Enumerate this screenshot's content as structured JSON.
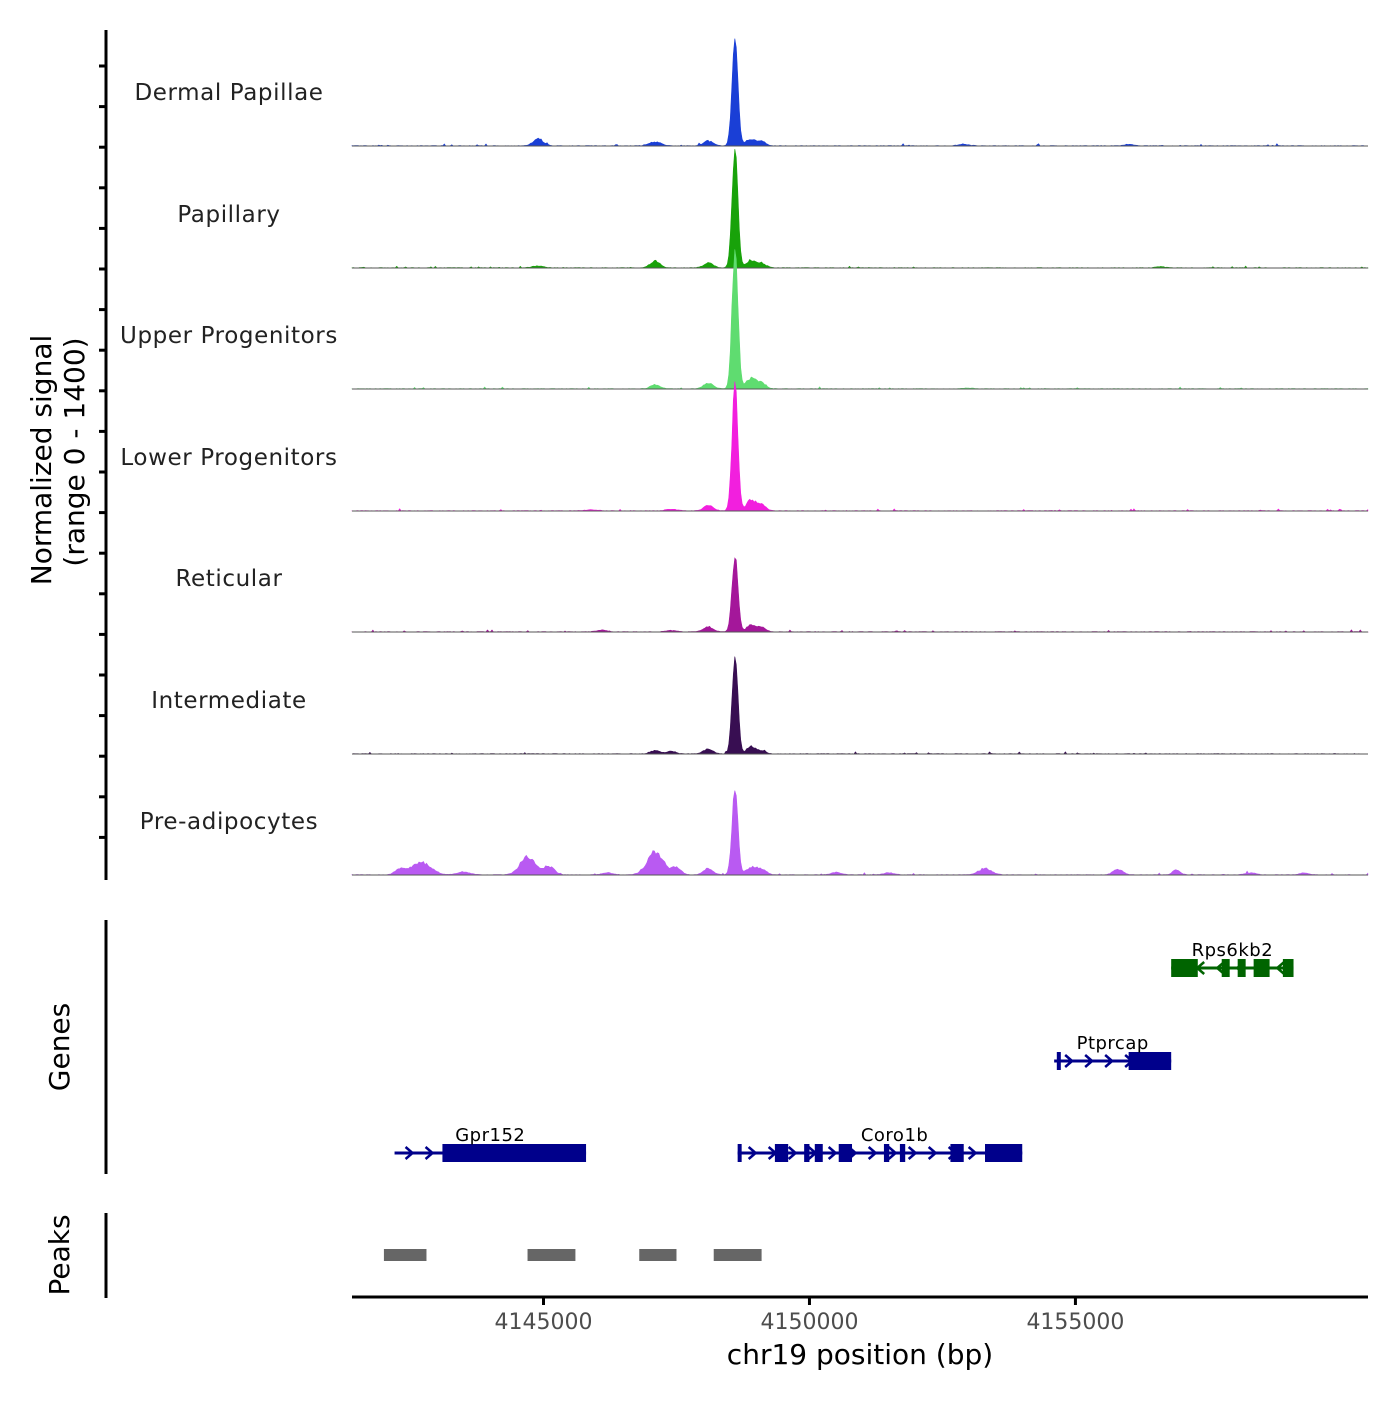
{
  "chart_data": {
    "type": "area",
    "title": "",
    "chromosome": "chr19",
    "xlabel": "chr19 position (bp)",
    "ylabel_line1": "Normalized signal",
    "ylabel_line2": "(range 0 - 1400)",
    "y_range": [
      0,
      1400
    ],
    "xlim": [
      4141400,
      4160500
    ],
    "x_ticks": [
      4145000,
      4150000,
      4155000
    ],
    "x_tick_labels": [
      "4145000",
      "4150000",
      "4155000"
    ],
    "series": [
      {
        "name": "Dermal Papillae",
        "color": "#1a3fd6",
        "peak": 1400,
        "minor": [
          [
            4144900,
            110,
            90
          ],
          [
            4147100,
            60,
            110
          ],
          [
            4148100,
            70,
            90
          ],
          [
            4148900,
            90,
            90
          ],
          [
            4149100,
            60,
            80
          ],
          [
            4152900,
            25,
            100
          ],
          [
            4156000,
            20,
            90
          ]
        ]
      },
      {
        "name": "Papillary",
        "color": "#18a20a",
        "peak": 1560,
        "minor": [
          [
            4144900,
            30,
            100
          ],
          [
            4147100,
            100,
            90
          ],
          [
            4148100,
            70,
            90
          ],
          [
            4148900,
            110,
            80
          ],
          [
            4149100,
            70,
            80
          ],
          [
            4156600,
            15,
            90
          ]
        ]
      },
      {
        "name": "Upper Progenitors",
        "color": "#5fdc70",
        "peak": 1880,
        "minor": [
          [
            4147100,
            60,
            90
          ],
          [
            4148100,
            80,
            90
          ],
          [
            4148900,
            150,
            90
          ],
          [
            4149100,
            90,
            80
          ],
          [
            4153000,
            10,
            100
          ]
        ]
      },
      {
        "name": "Lower Progenitors",
        "color": "#f21fde",
        "peak": 1670,
        "minor": [
          [
            4148100,
            80,
            90
          ],
          [
            4148900,
            160,
            80
          ],
          [
            4149100,
            90,
            80
          ],
          [
            4147400,
            25,
            100
          ],
          [
            4145900,
            15,
            120
          ]
        ]
      },
      {
        "name": "Reticular",
        "color": "#a4179a",
        "peak": 1020,
        "minor": [
          [
            4148100,
            70,
            90
          ],
          [
            4148900,
            100,
            80
          ],
          [
            4149100,
            70,
            80
          ],
          [
            4146100,
            25,
            100
          ],
          [
            4147400,
            20,
            100
          ]
        ]
      },
      {
        "name": "Intermediate",
        "color": "#380e52",
        "peak": 1280,
        "minor": [
          [
            4147100,
            50,
            90
          ],
          [
            4147400,
            40,
            80
          ],
          [
            4148100,
            70,
            90
          ],
          [
            4148900,
            110,
            80
          ],
          [
            4149100,
            40,
            80
          ]
        ]
      },
      {
        "name": "Pre-adipocytes",
        "color": "#b95af2",
        "peak": 1150,
        "minor": [
          [
            4142300,
            80,
            90
          ],
          [
            4142700,
            180,
            180
          ],
          [
            4144700,
            260,
            140
          ],
          [
            4145100,
            120,
            100
          ],
          [
            4147100,
            330,
            150
          ],
          [
            4147500,
            100,
            90
          ],
          [
            4148100,
            90,
            90
          ],
          [
            4148900,
            110,
            90
          ],
          [
            4149100,
            80,
            90
          ],
          [
            4153300,
            90,
            120
          ],
          [
            4155800,
            80,
            90
          ],
          [
            4156900,
            70,
            70
          ],
          [
            4143500,
            40,
            120
          ],
          [
            4146200,
            30,
            100
          ],
          [
            4150500,
            35,
            100
          ],
          [
            4151500,
            30,
            100
          ],
          [
            4158300,
            30,
            100
          ],
          [
            4159300,
            25,
            100
          ]
        ]
      }
    ],
    "peak_center": 4148600,
    "peak_sigma": 55,
    "genes_track_label": "Genes",
    "genes": [
      {
        "name": "Rps6kb2",
        "strand": "-",
        "start": 4156800,
        "end": 4159100,
        "row": 0,
        "color": "#006400",
        "exons": [
          [
            4156800,
            4157300
          ],
          [
            4157750,
            4157900
          ],
          [
            4158050,
            4158200
          ],
          [
            4158350,
            4158650
          ],
          [
            4158900,
            4159100
          ]
        ]
      },
      {
        "name": "Ptprcap",
        "strand": "+",
        "start": 4154600,
        "end": 4156800,
        "row": 1,
        "color": "#00008b",
        "exons": [
          [
            4154650,
            4154700
          ],
          [
            4156000,
            4156800
          ]
        ]
      },
      {
        "name": "Gpr152",
        "strand": "+",
        "start": 4142200,
        "end": 4145800,
        "row": 2,
        "color": "#00008b",
        "exons": [
          [
            4143100,
            4145800
          ]
        ]
      },
      {
        "name": "Coro1b",
        "strand": "+",
        "start": 4149200,
        "end": 4154000,
        "row": 2,
        "color": "#00008b",
        "exons": [
          [
            4148650,
            4148700
          ],
          [
            4149350,
            4149600
          ],
          [
            4149900,
            4150000
          ],
          [
            4150100,
            4150250
          ],
          [
            4150550,
            4150800
          ],
          [
            4151400,
            4151500
          ],
          [
            4151700,
            4151800
          ],
          [
            4152650,
            4152900
          ],
          [
            4153300,
            4154000
          ]
        ]
      }
    ],
    "peaks_track_label": "Peaks",
    "peaks": [
      [
        4142000,
        4142800
      ],
      [
        4144700,
        4145600
      ],
      [
        4146800,
        4147500
      ],
      [
        4148200,
        4149100
      ]
    ],
    "peaks_color": "#666666"
  }
}
